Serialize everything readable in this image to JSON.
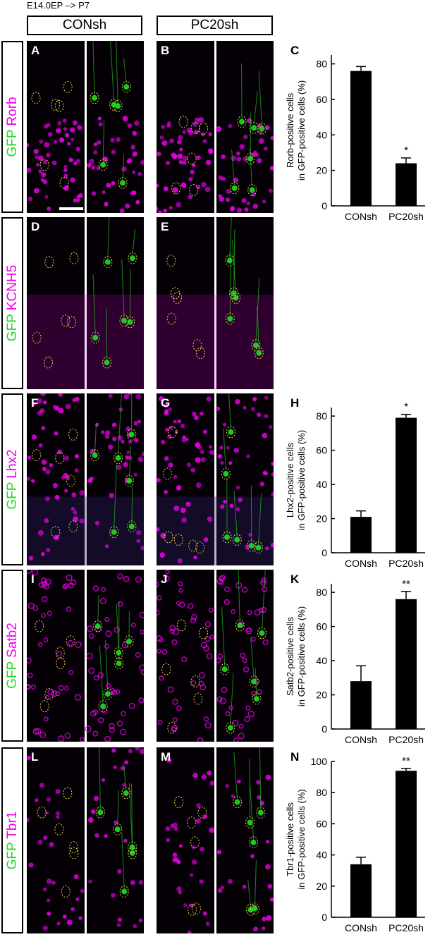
{
  "header": {
    "label": "E14.0EP –> P7"
  },
  "groups": [
    {
      "label": "CONsh"
    },
    {
      "label": "PC20sh"
    }
  ],
  "rows": [
    {
      "marker": "Rorb",
      "stain": "GFP"
    },
    {
      "marker": "KCNH5",
      "stain": "GFP"
    },
    {
      "marker": "Lhx2",
      "stain": "GFP"
    },
    {
      "marker": "Satb2",
      "stain": "GFP"
    },
    {
      "marker": "Tbr1",
      "stain": "GFP"
    }
  ],
  "panels": [
    {
      "label": "A",
      "group": "CONsh",
      "marker": "Rorb"
    },
    {
      "label": "B",
      "group": "PC20sh",
      "marker": "Rorb"
    },
    {
      "label": "D",
      "group": "CONsh",
      "marker": "KCNH5"
    },
    {
      "label": "E",
      "group": "PC20sh",
      "marker": "KCNH5"
    },
    {
      "label": "F",
      "group": "CONsh",
      "marker": "Lhx2"
    },
    {
      "label": "G",
      "group": "PC20sh",
      "marker": "Lhx2"
    },
    {
      "label": "I",
      "group": "CONsh",
      "marker": "Satb2"
    },
    {
      "label": "J",
      "group": "PC20sh",
      "marker": "Satb2"
    },
    {
      "label": "L",
      "group": "CONsh",
      "marker": "Tbr1"
    },
    {
      "label": "M",
      "group": "PC20sh",
      "marker": "Tbr1"
    }
  ],
  "colors": {
    "gfp": "#22dd22",
    "marker": "#ee00ee",
    "circle": "#e8d84a",
    "bar": "#000000"
  },
  "chart_data": [
    {
      "panel": "C",
      "type": "bar",
      "categories": [
        "CONsh",
        "PC20sh"
      ],
      "values": [
        76,
        24
      ],
      "errors": [
        2.5,
        3
      ],
      "significance": [
        "",
        "*"
      ],
      "ylabel_line1": "Rorb-positive cells",
      "ylabel_line2": "in GFP-positive cells (%)",
      "ylim": [
        0,
        85
      ],
      "yticks": [
        0,
        20,
        40,
        60,
        80
      ]
    },
    {
      "panel": "H",
      "type": "bar",
      "categories": [
        "CONsh",
        "PC20sh"
      ],
      "values": [
        21,
        79
      ],
      "errors": [
        3.5,
        2
      ],
      "significance": [
        "",
        "*"
      ],
      "ylabel_line1": "Lhx2-positive cells",
      "ylabel_line2": "in GFP-positive cells (%)",
      "ylim": [
        0,
        85
      ],
      "yticks": [
        0,
        20,
        40,
        60,
        80
      ]
    },
    {
      "panel": "K",
      "type": "bar",
      "categories": [
        "CONsh",
        "PC20sh"
      ],
      "values": [
        28,
        76
      ],
      "errors": [
        9,
        4.5
      ],
      "significance": [
        "",
        "**"
      ],
      "ylabel_line1": "Satb2-positive cells",
      "ylabel_line2": "in GFP-positive cells (%)",
      "ylim": [
        0,
        85
      ],
      "yticks": [
        0,
        20,
        40,
        60,
        80
      ]
    },
    {
      "panel": "N",
      "type": "bar",
      "categories": [
        "CONsh",
        "PC20sh"
      ],
      "values": [
        34,
        94
      ],
      "errors": [
        4.5,
        1.5
      ],
      "significance": [
        "",
        "**"
      ],
      "ylabel_line1": "Tbr1-positive cells",
      "ylabel_line2": "in GFP-positive cells (%)",
      "ylim": [
        0,
        100
      ],
      "yticks": [
        0,
        20,
        40,
        60,
        80,
        100
      ]
    }
  ]
}
